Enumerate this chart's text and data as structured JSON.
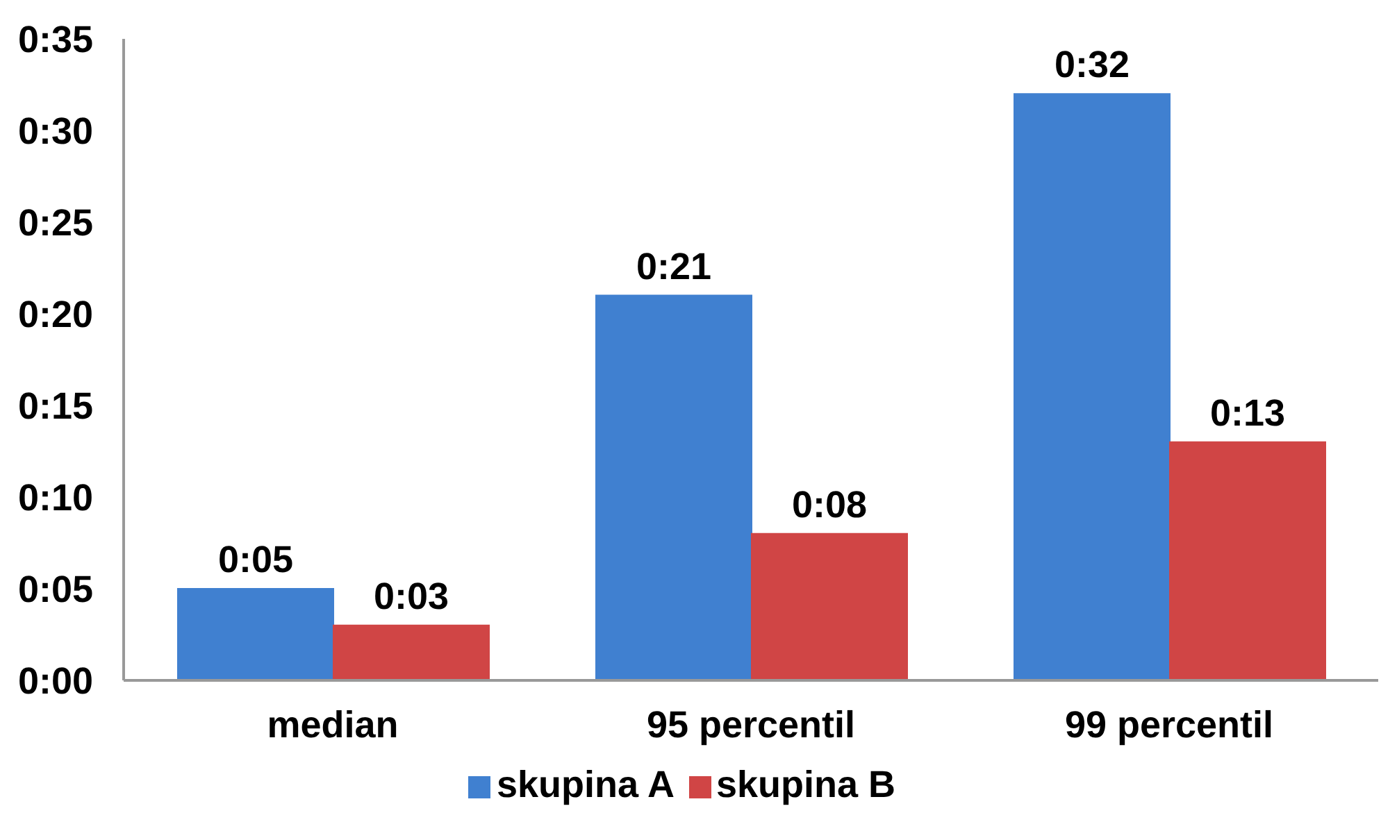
{
  "chart_data": {
    "type": "bar",
    "categories": [
      "median",
      "95 percentil",
      "99 percentil"
    ],
    "series": [
      {
        "name": "skupina A",
        "color": "#4080d0",
        "values": [
          5,
          21,
          32
        ],
        "value_labels": [
          "0:05",
          "0:21",
          "0:32"
        ]
      },
      {
        "name": "skupina B",
        "color": "#d04545",
        "values": [
          3,
          8,
          13
        ],
        "value_labels": [
          "0:03",
          "0:08",
          "0:13"
        ]
      }
    ],
    "ylim": [
      0,
      35
    ],
    "yticks": [
      {
        "value": 0,
        "label": "0:00"
      },
      {
        "value": 5,
        "label": "0:05"
      },
      {
        "value": 10,
        "label": "0:10"
      },
      {
        "value": 15,
        "label": "0:15"
      },
      {
        "value": 20,
        "label": "0:20"
      },
      {
        "value": 25,
        "label": "0:25"
      },
      {
        "value": 30,
        "label": "0:30"
      },
      {
        "value": 35,
        "label": "0:35"
      }
    ],
    "grid": false,
    "legend": "bottom"
  }
}
